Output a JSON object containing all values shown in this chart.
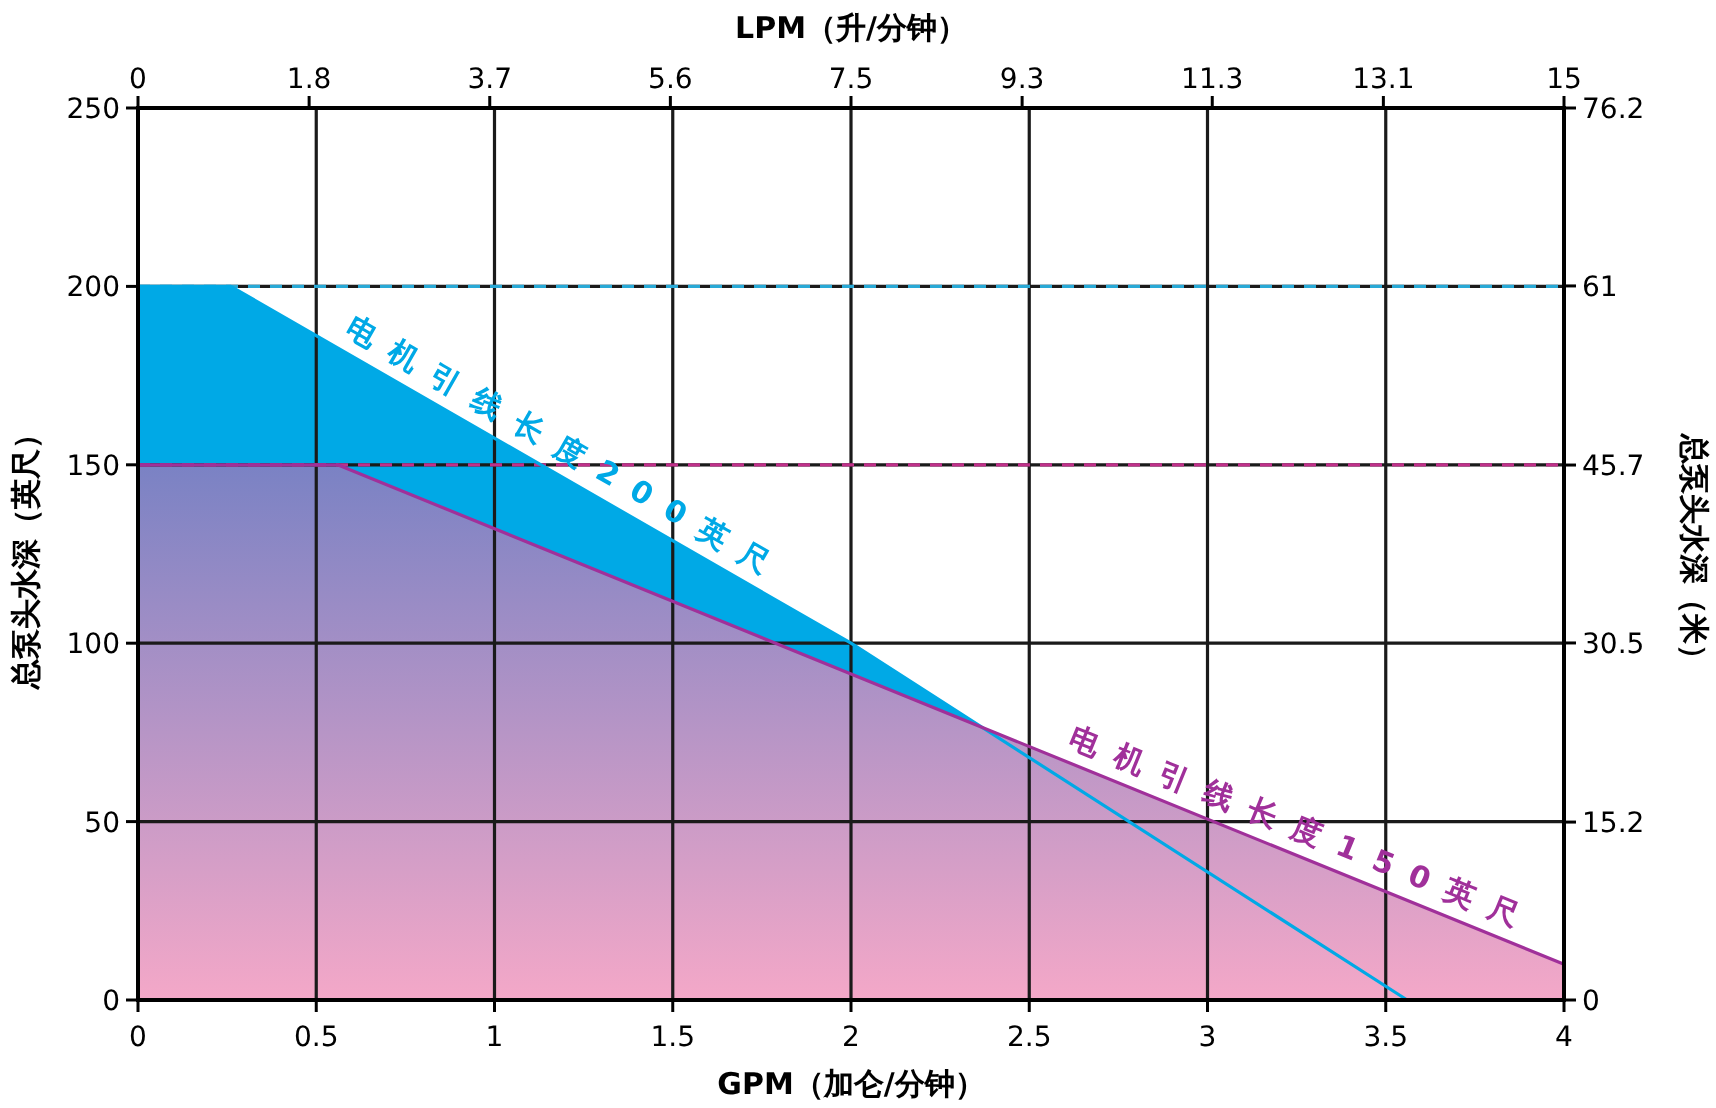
{
  "chart_data": {
    "type": "area",
    "xlabel": "GPM（加仑/分钟）",
    "x2label": "LPM（升/分钟）",
    "ylabel": "总泵头水深（英尺）",
    "y2label": "总泵头水深（米）",
    "xlim": [
      0,
      4
    ],
    "xticks": [
      0,
      0.5,
      1,
      1.5,
      2,
      2.5,
      3,
      3.5,
      4
    ],
    "x2lim": [
      0,
      15
    ],
    "x2ticks": [
      0,
      1.8,
      3.7,
      5.6,
      7.5,
      9.3,
      11.3,
      13.1,
      15
    ],
    "ylim": [
      0,
      250
    ],
    "yticks": [
      0,
      50,
      100,
      150,
      200,
      250
    ],
    "y2lim": [
      0,
      76.2
    ],
    "y2ticks": [
      0,
      15.2,
      30.5,
      45.7,
      61,
      76.2
    ],
    "grid": true,
    "series": [
      {
        "name": "电机引线长度200英尺",
        "color": "#00a9e6",
        "x": [
          0,
          0.26,
          2.0,
          3.56
        ],
        "values": [
          200,
          200,
          100,
          0
        ]
      },
      {
        "name": "电机引线长度150英尺",
        "color": "#a0309a",
        "x": [
          0,
          0.56,
          4
        ],
        "values": [
          150,
          150,
          10
        ]
      }
    ],
    "ref_lines": [
      {
        "axis": "y",
        "value": 200,
        "color": "#29a9d6",
        "line_style": "dashed"
      },
      {
        "axis": "y",
        "value": 150,
        "color": "#c0308a",
        "line_style": "dashed"
      }
    ]
  }
}
